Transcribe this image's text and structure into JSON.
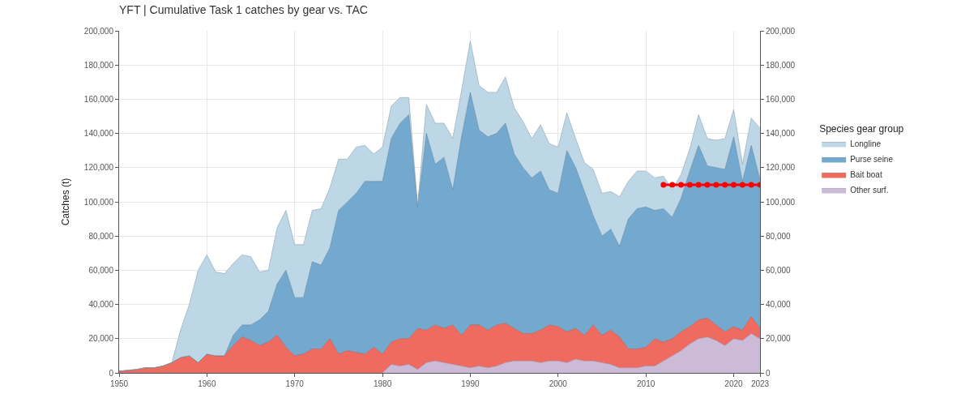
{
  "chart_data": {
    "type": "area",
    "title": "YFT | Cumulative Task 1 catches by gear vs. TAC",
    "ylabel": "Catches (t)",
    "legend_title": "Species gear group",
    "x": [
      1950,
      1951,
      1952,
      1953,
      1954,
      1955,
      1956,
      1957,
      1958,
      1959,
      1960,
      1961,
      1962,
      1963,
      1964,
      1965,
      1966,
      1967,
      1968,
      1969,
      1970,
      1971,
      1972,
      1973,
      1974,
      1975,
      1976,
      1977,
      1978,
      1979,
      1980,
      1981,
      1982,
      1983,
      1984,
      1985,
      1986,
      1987,
      1988,
      1989,
      1990,
      1991,
      1992,
      1993,
      1994,
      1995,
      1996,
      1997,
      1998,
      1999,
      2000,
      2001,
      2002,
      2003,
      2004,
      2005,
      2006,
      2007,
      2008,
      2009,
      2010,
      2011,
      2012,
      2013,
      2014,
      2015,
      2016,
      2017,
      2018,
      2019,
      2020,
      2021,
      2022,
      2023
    ],
    "stacked": true,
    "series": [
      {
        "name": "Other surf.",
        "color": "#cbbbd9",
        "values": [
          0,
          0,
          0,
          0,
          0,
          0,
          0,
          0,
          0,
          0,
          0,
          0,
          0,
          0,
          0,
          0,
          0,
          0,
          0,
          0,
          0,
          0,
          0,
          0,
          0,
          0,
          0,
          0,
          0,
          0,
          0,
          5000,
          4000,
          5000,
          2000,
          6000,
          7000,
          6000,
          5000,
          4000,
          3000,
          4000,
          3000,
          4000,
          6000,
          7000,
          7000,
          7000,
          6000,
          7000,
          7000,
          6000,
          8000,
          7000,
          7000,
          6000,
          5000,
          3000,
          3000,
          3000,
          4000,
          4000,
          7000,
          10000,
          13000,
          17000,
          20000,
          21000,
          19000,
          16000,
          20000,
          19000,
          23000,
          20000
        ]
      },
      {
        "name": "Bait boat",
        "color": "#ef6a5f",
        "values": [
          1000,
          1500,
          2000,
          3000,
          3000,
          4000,
          6000,
          9000,
          10000,
          6000,
          11000,
          10000,
          10000,
          16000,
          21000,
          19000,
          16000,
          18000,
          22000,
          15000,
          10000,
          11000,
          14000,
          14000,
          20000,
          11000,
          13000,
          12000,
          11000,
          15000,
          11000,
          13000,
          16000,
          15000,
          24000,
          19000,
          21000,
          20000,
          23000,
          18000,
          25000,
          24000,
          22000,
          24000,
          23000,
          19000,
          16000,
          16000,
          19000,
          21000,
          20000,
          18000,
          18000,
          15000,
          21000,
          16000,
          20000,
          18000,
          11000,
          11000,
          11000,
          16000,
          11000,
          10000,
          11000,
          10000,
          11000,
          11000,
          9000,
          8000,
          7000,
          6000,
          10000,
          6000
        ]
      },
      {
        "name": "Purse seine",
        "color": "#74a9cf",
        "values": [
          0,
          0,
          0,
          0,
          0,
          0,
          0,
          0,
          0,
          0,
          0,
          0,
          0,
          6000,
          7000,
          9000,
          15000,
          18000,
          30000,
          45000,
          34000,
          33000,
          51000,
          49000,
          53000,
          84000,
          87000,
          93000,
          101000,
          97000,
          101000,
          119000,
          126000,
          131000,
          71000,
          115000,
          94000,
          100000,
          79000,
          116000,
          136000,
          114000,
          113000,
          112000,
          117000,
          102000,
          97000,
          91000,
          93000,
          79000,
          78000,
          106000,
          94000,
          84000,
          64000,
          58000,
          59000,
          53000,
          76000,
          82000,
          82000,
          75000,
          78000,
          71000,
          78000,
          91000,
          102000,
          89000,
          92000,
          95000,
          111000,
          87000,
          100000,
          87000
        ]
      },
      {
        "name": "Longline",
        "color": "#bdd7e7",
        "values": [
          0,
          0,
          0,
          0,
          0,
          0,
          0,
          16000,
          30000,
          54000,
          58000,
          49000,
          48000,
          42000,
          41000,
          40000,
          28000,
          24000,
          33000,
          35000,
          31000,
          31000,
          30000,
          33000,
          35000,
          30000,
          25000,
          27000,
          21000,
          16000,
          20000,
          19000,
          15000,
          10000,
          1000,
          17000,
          24000,
          20000,
          30000,
          27000,
          30000,
          26000,
          26000,
          24000,
          27000,
          27000,
          27000,
          23000,
          27000,
          27000,
          27000,
          22000,
          17000,
          17000,
          27000,
          25000,
          22000,
          29000,
          22000,
          22000,
          21000,
          19000,
          19000,
          16000,
          14000,
          13000,
          18000,
          16000,
          16000,
          18000,
          16000,
          10000,
          16000,
          30000
        ]
      },
      {
        "type": "line",
        "color": "#ff0000",
        "marker": "circle",
        "x": [
          2012,
          2013,
          2014,
          2015,
          2016,
          2017,
          2018,
          2019,
          2020,
          2021,
          2022,
          2023
        ],
        "values": [
          110000,
          110000,
          110000,
          110000,
          110000,
          110000,
          110000,
          110000,
          110000,
          110000,
          110000,
          110000
        ]
      }
    ],
    "xlim": [
      1950,
      2023
    ],
    "xticks": [
      1950,
      1960,
      1970,
      1980,
      1990,
      2000,
      2010,
      2020,
      2023
    ],
    "ylim": [
      0,
      200000
    ],
    "yticks": [
      {
        "value": 0,
        "label": "0"
      },
      {
        "value": 20000,
        "label": "20,000"
      },
      {
        "value": 40000,
        "label": "40,000"
      },
      {
        "value": 60000,
        "label": "60,000"
      },
      {
        "value": 80000,
        "label": "80,000"
      },
      {
        "value": 100000,
        "label": "100,000"
      },
      {
        "value": 120000,
        "label": "120,000"
      },
      {
        "value": 140000,
        "label": "140,000"
      },
      {
        "value": 160000,
        "label": "160,000"
      },
      {
        "value": 180000,
        "label": "180,000"
      },
      {
        "value": 200000,
        "label": "200,000"
      }
    ],
    "y2lim": [
      0,
      200000
    ],
    "y2ticks": [
      {
        "value": 0,
        "label": "0"
      },
      {
        "value": 20000,
        "label": "20,000"
      },
      {
        "value": 40000,
        "label": "40,000"
      },
      {
        "value": 60000,
        "label": "60,000"
      },
      {
        "value": 80000,
        "label": "80,000"
      },
      {
        "value": 100000,
        "label": "100,000"
      },
      {
        "value": 120000,
        "label": "120,000"
      },
      {
        "value": 140000,
        "label": "140,000"
      },
      {
        "value": 160000,
        "label": "160,000"
      },
      {
        "value": 180000,
        "label": "180,000"
      },
      {
        "value": 200000,
        "label": "200,000"
      }
    ],
    "grid": true,
    "legend": "right"
  }
}
